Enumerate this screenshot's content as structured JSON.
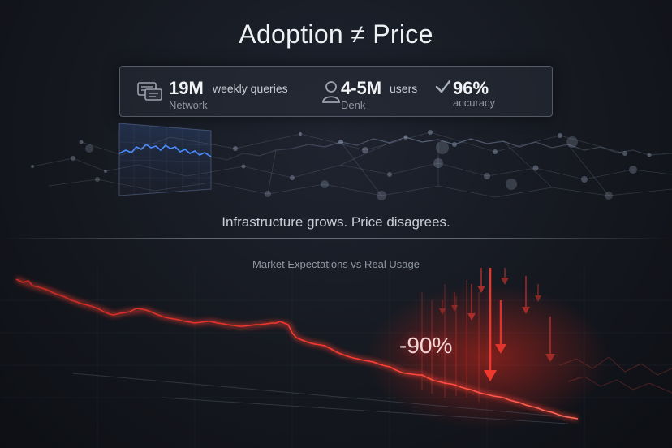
{
  "title": "Adoption ≠ Price",
  "stats": [
    {
      "value": "19M",
      "unit": "weekly queries",
      "sub": "Network",
      "icon": "chat-icon"
    },
    {
      "value": "4-5M",
      "unit": "users",
      "sub": "Denk",
      "icon": "user-icon"
    },
    {
      "value": "96%",
      "unit": "",
      "sub": "accuracy",
      "icon": "check-icon"
    }
  ],
  "tagline": "Infrastructure grows. Price disagrees.",
  "chart": {
    "title": "Market Expectations vs Real Usage",
    "callout": "-90%",
    "accent_color": "#ff3b30",
    "network_color": "#4a8cff"
  }
}
